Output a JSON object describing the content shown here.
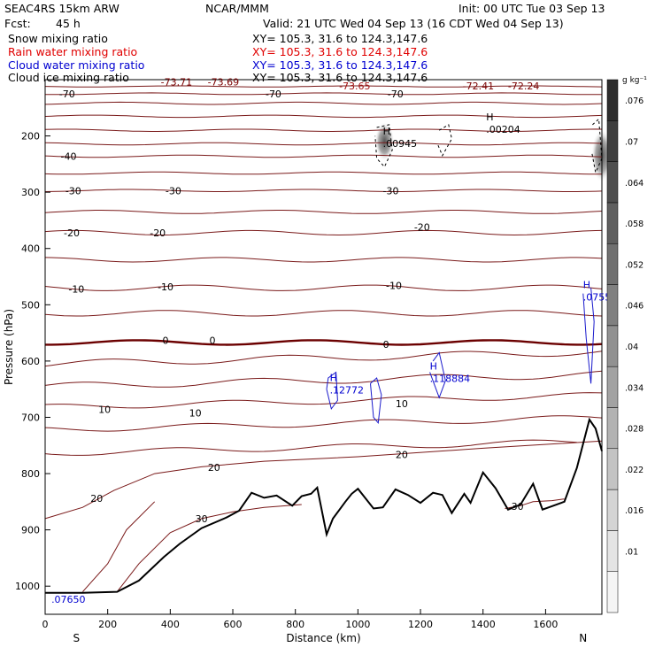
{
  "header": {
    "model": "SEAC4RS 15km ARW",
    "org": "NCAR/MMM",
    "init": "Init: 00 UTC Tue 03 Sep 13",
    "fcst_label": "Fcst:",
    "fcst_value": "45 h",
    "valid": "Valid: 21 UTC Wed 04 Sep 13 (16 CDT Wed 04 Sep 13)",
    "fields": [
      {
        "name": "Snow mixing ratio",
        "xy": "XY= 105.3, 31.6 to 124.3,147.6",
        "color": "#000000"
      },
      {
        "name": "Rain water mixing ratio",
        "xy": "XY= 105.3, 31.6 to 124.3,147.6",
        "color": "#e00000"
      },
      {
        "name": "Cloud water mixing ratio",
        "xy": "XY= 105.3, 31.6 to 124.3,147.6",
        "color": "#0000d0"
      },
      {
        "name": "Cloud ice mixing ratio",
        "xy": "XY= 105.3, 31.6 to 124.3,147.6",
        "color": "#000000"
      }
    ]
  },
  "chart_data": {
    "type": "contour-cross-section",
    "xlabel": "Distance (km)",
    "ylabel": "Pressure (hPa)",
    "xlim": [
      0,
      1780
    ],
    "ylim": [
      1050,
      100
    ],
    "x_ticks": [
      0,
      200,
      400,
      600,
      800,
      1000,
      1200,
      1400,
      1600
    ],
    "y_ticks": [
      200,
      300,
      400,
      500,
      600,
      700,
      800,
      900,
      1000
    ],
    "endpoints": {
      "left": "S",
      "right": "N"
    },
    "colorbar": {
      "units": "g kg⁻¹",
      "ticks": [
        ".01",
        ".016",
        ".022",
        ".028",
        ".034",
        ".04",
        ".046",
        ".052",
        ".058",
        ".064",
        ".07",
        ".076"
      ]
    },
    "temperature_contours": [
      {
        "level": -70,
        "labels": [
          {
            "x": 70,
            "p": 125,
            "text": "-70"
          },
          {
            "x": 730,
            "p": 125,
            "text": "-70"
          },
          {
            "x": 1120,
            "p": 125,
            "text": "-70"
          }
        ]
      },
      {
        "level": -40,
        "labels": [
          {
            "x": 75,
            "p": 236,
            "text": "-40"
          }
        ]
      },
      {
        "level": -30,
        "labels": [
          {
            "x": 90,
            "p": 297,
            "text": "-30"
          },
          {
            "x": 410,
            "p": 297,
            "text": "-30"
          },
          {
            "x": 1105,
            "p": 297,
            "text": "-30"
          }
        ]
      },
      {
        "level": -20,
        "labels": [
          {
            "x": 85,
            "p": 372,
            "text": "-20"
          },
          {
            "x": 360,
            "p": 372,
            "text": "-20"
          },
          {
            "x": 1205,
            "p": 362,
            "text": "-20"
          }
        ]
      },
      {
        "level": -10,
        "labels": [
          {
            "x": 100,
            "p": 472,
            "text": "-10"
          },
          {
            "x": 385,
            "p": 468,
            "text": "-10"
          },
          {
            "x": 1115,
            "p": 466,
            "text": "-10"
          }
        ]
      },
      {
        "level": 0,
        "labels": [
          {
            "x": 385,
            "p": 563,
            "text": "0"
          },
          {
            "x": 535,
            "p": 563,
            "text": "0"
          },
          {
            "x": 1090,
            "p": 570,
            "text": "0"
          }
        ]
      },
      {
        "level": 10,
        "labels": [
          {
            "x": 190,
            "p": 686,
            "text": "10"
          },
          {
            "x": 480,
            "p": 692,
            "text": "10"
          },
          {
            "x": 1140,
            "p": 676,
            "text": "10"
          }
        ]
      },
      {
        "level": 20,
        "labels": [
          {
            "x": 165,
            "p": 844,
            "text": "20"
          },
          {
            "x": 540,
            "p": 789,
            "text": "20"
          },
          {
            "x": 1140,
            "p": 766,
            "text": "20"
          }
        ]
      },
      {
        "level": 30,
        "labels": [
          {
            "x": 500,
            "p": 880,
            "text": "30"
          },
          {
            "x": 1510,
            "p": 858,
            "text": "30"
          }
        ]
      }
    ],
    "top_values": [
      {
        "x": 420,
        "p": 110,
        "text": "-73.71"
      },
      {
        "x": 570,
        "p": 110,
        "text": "-73.69"
      },
      {
        "x": 990,
        "p": 117,
        "text": "-73.65"
      },
      {
        "x": 1385,
        "p": 117,
        "text": "-72.41"
      },
      {
        "x": 1530,
        "p": 117,
        "text": "-72.24"
      }
    ],
    "maxima": [
      {
        "x": 1080,
        "p": 210,
        "h": "H",
        "value": ".00945",
        "color": "#000000"
      },
      {
        "x": 1410,
        "p": 185,
        "h": "H",
        "value": ".00204",
        "color": "#000000"
      },
      {
        "x": 910,
        "p": 648,
        "h": "H",
        "value": ".12772",
        "color": "#0000d0"
      },
      {
        "x": 1230,
        "p": 628,
        "h": "H",
        "value": ".118884",
        "color": "#0000d0"
      },
      {
        "x": 1720,
        "p": 483,
        "h": "H",
        "value": ".0755",
        "color": "#0000d0"
      },
      {
        "x": 20,
        "p": 1020,
        "h": "",
        "value": ".07650",
        "color": "#0000d0"
      }
    ],
    "terrain": {
      "x": [
        0,
        80,
        120,
        230,
        300,
        380,
        430,
        500,
        580,
        620,
        660,
        700,
        740,
        790,
        820,
        850,
        870,
        900,
        920,
        960,
        980,
        1000,
        1050,
        1080,
        1120,
        1160,
        1200,
        1240,
        1270,
        1300,
        1340,
        1360,
        1400,
        1440,
        1480,
        1520,
        1560,
        1590,
        1620,
        1660,
        1700,
        1740,
        1760,
        1780
      ],
      "p": [
        1012,
        1012,
        1012,
        1010,
        990,
        948,
        925,
        897,
        878,
        866,
        834,
        843,
        839,
        857,
        840,
        836,
        825,
        908,
        880,
        850,
        836,
        827,
        862,
        860,
        828,
        838,
        852,
        834,
        838,
        870,
        836,
        852,
        798,
        826,
        864,
        855,
        818,
        864,
        858,
        850,
        790,
        704,
        720,
        760
      ]
    }
  }
}
